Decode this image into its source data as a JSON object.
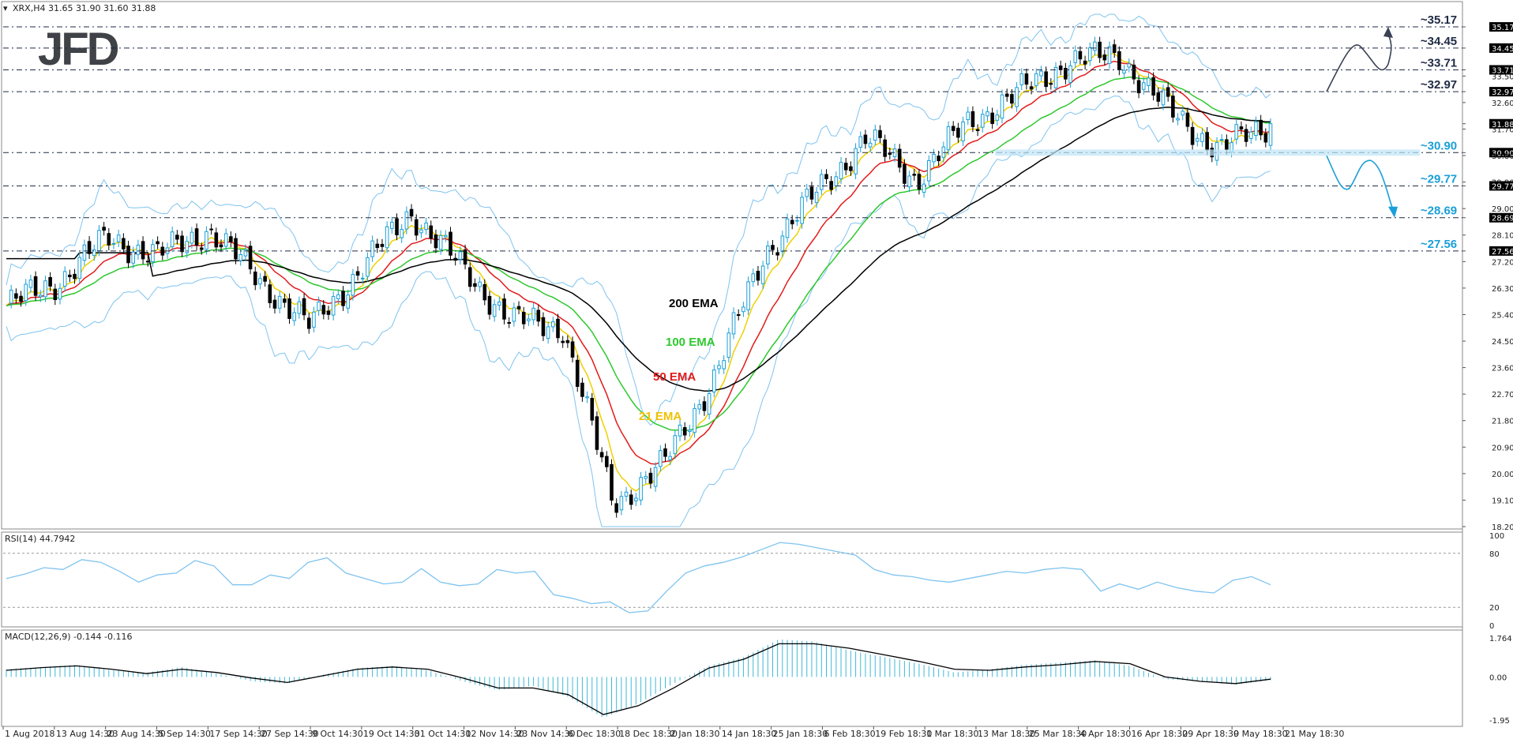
{
  "header": {
    "symbol_info": "XRX,H4  31.65 31.90 31.60 31.88",
    "logo": "JFD"
  },
  "panels": {
    "rsi_label": "RSI(14) 44.7942",
    "macd_label": "MACD(12,26,9) -0.144 -0.116"
  },
  "colors": {
    "bull_candle": "#1a9fd8",
    "bear_candle": "#000000",
    "ema21": "#f0d000",
    "ema50": "#e31b1b",
    "ema100": "#2ec82e",
    "ema200": "#000000",
    "bollinger": "#7fc3ef",
    "resistance": "#1f2a44",
    "support": "#1a9fd8",
    "histogram": "#41b8d8"
  },
  "chart_data": [
    {
      "type": "candlestick",
      "title": "XRX,H4  31.65 31.90 31.60 31.88",
      "price_ticks": [
        "35.17",
        "34.45",
        "33.50",
        "33.71",
        "32.97",
        "32.60",
        "31.70",
        "31.88",
        "30.90",
        "30.80",
        "29.90",
        "29.77",
        "29.00",
        "28.69",
        "28.10",
        "27.56",
        "27.20",
        "26.30",
        "25.40",
        "24.50",
        "23.60",
        "22.70",
        "21.80",
        "20.90",
        "20.00",
        "19.10",
        "18.20"
      ],
      "ylim": [
        18.2,
        35.6
      ],
      "x_tick_labels": [
        "1 Aug 2018",
        "13 Aug 14:30",
        "23 Aug 14:30",
        "5 Sep 14:30",
        "17 Sep 14:30",
        "27 Sep 14:30",
        "9 Oct 14:30",
        "19 Oct 14:30",
        "31 Oct 14:30",
        "12 Nov 14:30",
        "23 Nov 14:30",
        "6 Dec 18:30",
        "18 Dec 18:30",
        "2 Jan 18:30",
        "14 Jan 18:30",
        "25 Jan 18:30",
        "6 Feb 18:30",
        "19 Feb 18:30",
        "1 Mar 18:30",
        "13 Mar 18:30",
        "25 Mar 18:30",
        "4 Apr 18:30",
        "16 Apr 18:30",
        "29 Apr 18:30",
        "9 May 18:30",
        "21 May 18:30"
      ],
      "close_path_anchors": [
        {
          "x": "1 Aug 2018",
          "y": 25.7
        },
        {
          "x": "13 Aug 14:30",
          "y": 26.5
        },
        {
          "x": "23 Aug 14:30",
          "y": 28.0
        },
        {
          "x": "5 Sep 14:30",
          "y": 27.4
        },
        {
          "x": "17 Sep 14:30",
          "y": 28.3
        },
        {
          "x": "27 Sep 14:30",
          "y": 26.6
        },
        {
          "x": "9 Oct 14:30",
          "y": 25.0
        },
        {
          "x": "19 Oct 14:30",
          "y": 26.9
        },
        {
          "x": "31 Oct 14:30",
          "y": 28.9
        },
        {
          "x": "12 Nov 14:30",
          "y": 27.0
        },
        {
          "x": "23 Nov 14:30",
          "y": 25.2
        },
        {
          "x": "6 Dec 18:30",
          "y": 25.0
        },
        {
          "x": "18 Dec 18:30",
          "y": 19.0
        },
        {
          "x": "2 Jan 18:30",
          "y": 20.3
        },
        {
          "x": "14 Jan 18:30",
          "y": 23.3
        },
        {
          "x": "25 Jan 18:30",
          "y": 27.5
        },
        {
          "x": "6 Feb 18:30",
          "y": 29.5
        },
        {
          "x": "19 Feb 18:30",
          "y": 31.4
        },
        {
          "x": "1 Mar 18:30",
          "y": 30.0
        },
        {
          "x": "13 Mar 18:30",
          "y": 31.9
        },
        {
          "x": "25 Mar 18:30",
          "y": 32.9
        },
        {
          "x": "4 Apr 18:30",
          "y": 34.0
        },
        {
          "x": "16 Apr 18:30",
          "y": 34.2
        },
        {
          "x": "29 Apr 18:30",
          "y": 32.3
        },
        {
          "x": "9 May 18:30",
          "y": 31.0
        },
        {
          "x": "21 May 18:30",
          "y": 31.88
        }
      ],
      "ema_labels": [
        "200 EMA",
        "100 EMA",
        "50 EMA",
        "21 EMA"
      ],
      "resistance_levels": [
        {
          "label": "~35.17",
          "value": 35.17
        },
        {
          "label": "~34.45",
          "value": 34.45
        },
        {
          "label": "~33.71",
          "value": 33.71
        },
        {
          "label": "~32.97",
          "value": 32.97
        }
      ],
      "support_levels": [
        {
          "label": "~30.90",
          "value": 30.9
        },
        {
          "label": "~29.77",
          "value": 29.77
        },
        {
          "label": "~28.69",
          "value": 28.69
        },
        {
          "label": "~27.56",
          "value": 27.56
        }
      ],
      "current_price": "31.88"
    },
    {
      "type": "line",
      "title": "RSI(14) 44.7942",
      "ylim": [
        0,
        100
      ],
      "ticks": [
        "100",
        "80",
        "20",
        "0"
      ],
      "values": [
        52,
        57,
        64,
        62,
        73,
        70,
        60,
        48,
        56,
        58,
        72,
        66,
        45,
        45,
        56,
        52,
        70,
        75,
        58,
        52,
        46,
        48,
        63,
        48,
        44,
        46,
        62,
        58,
        60,
        34,
        30,
        24,
        26,
        14,
        16,
        38,
        58,
        66,
        70,
        76,
        84,
        92,
        90,
        86,
        82,
        78,
        62,
        56,
        54,
        50,
        48,
        52,
        56,
        60,
        58,
        62,
        64,
        62,
        38,
        46,
        40,
        48,
        42,
        38,
        36,
        50,
        54,
        45
      ]
    },
    {
      "type": "bar",
      "title": "MACD(12,26,9) -0.144 -0.116",
      "ylim": [
        -1.95,
        1.764
      ],
      "ticks": [
        "1.764",
        "0.00",
        "-1.95"
      ],
      "values": [
        0.35,
        0.45,
        0.55,
        0.3,
        0.2,
        0.45,
        0.15,
        -0.2,
        -0.3,
        0.1,
        0.4,
        0.5,
        0.3,
        -0.2,
        -0.6,
        -0.4,
        -0.9,
        -1.85,
        -1.2,
        -0.3,
        0.5,
        0.9,
        1.7,
        1.6,
        1.2,
        0.9,
        0.6,
        0.2,
        0.35,
        0.55,
        0.65,
        0.75,
        0.5,
        -0.1,
        -0.2,
        -0.35,
        -0.15
      ],
      "signal": [
        0.3,
        0.42,
        0.5,
        0.35,
        0.15,
        0.35,
        0.2,
        -0.05,
        -0.25,
        0.05,
        0.35,
        0.45,
        0.35,
        -0.05,
        -0.5,
        -0.5,
        -0.8,
        -1.7,
        -1.3,
        -0.5,
        0.4,
        0.8,
        1.5,
        1.5,
        1.3,
        1.0,
        0.7,
        0.35,
        0.3,
        0.45,
        0.55,
        0.7,
        0.6,
        0.0,
        -0.2,
        -0.3,
        -0.1
      ]
    }
  ]
}
